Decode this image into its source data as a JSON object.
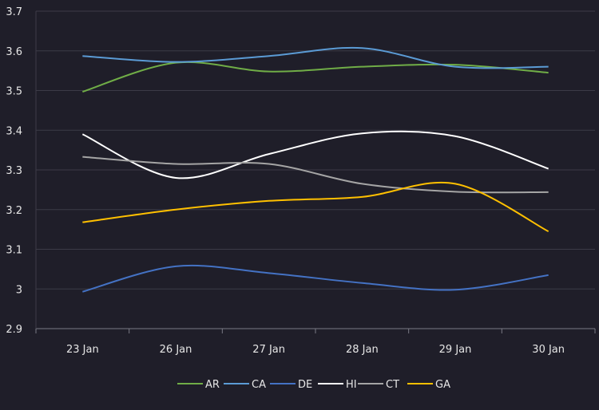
{
  "chart_data": {
    "type": "line",
    "title": "",
    "xlabel": "",
    "ylabel": "",
    "categories": [
      "23 Jan",
      "26 Jan",
      "27 Jan",
      "28 Jan",
      "29 Jan",
      "30 Jan"
    ],
    "ylim": [
      2.9,
      3.7
    ],
    "yticks": [
      2.9,
      3,
      3.1,
      3.2,
      3.3,
      3.4,
      3.5,
      3.6,
      3.7
    ],
    "ytick_labels": [
      "2.9",
      "3",
      "3.1",
      "3.2",
      "3.3",
      "3.4",
      "3.5",
      "3.6",
      "3.7"
    ],
    "grid": true,
    "legend_position": "bottom",
    "smooth": true,
    "series": [
      {
        "name": "AR",
        "color": "#70ad47",
        "values": [
          3.497,
          3.57,
          3.548,
          3.56,
          3.565,
          3.545
        ]
      },
      {
        "name": "CA",
        "color": "#5b9bd5",
        "values": [
          3.587,
          3.572,
          3.587,
          3.607,
          3.56,
          3.56
        ]
      },
      {
        "name": "DE",
        "color": "#4472c4",
        "values": [
          2.993,
          3.057,
          3.04,
          3.015,
          2.998,
          3.035
        ]
      },
      {
        "name": "HI",
        "color": "#ffffff",
        "values": [
          3.39,
          3.28,
          3.34,
          3.392,
          3.385,
          3.303
        ]
      },
      {
        "name": "CT",
        "color": "#a5a5a5",
        "values": [
          3.333,
          3.315,
          3.315,
          3.265,
          3.245,
          3.244
        ]
      },
      {
        "name": "GA",
        "color": "#ffc000",
        "values": [
          3.168,
          3.2,
          3.222,
          3.232,
          3.265,
          3.145
        ]
      }
    ]
  }
}
